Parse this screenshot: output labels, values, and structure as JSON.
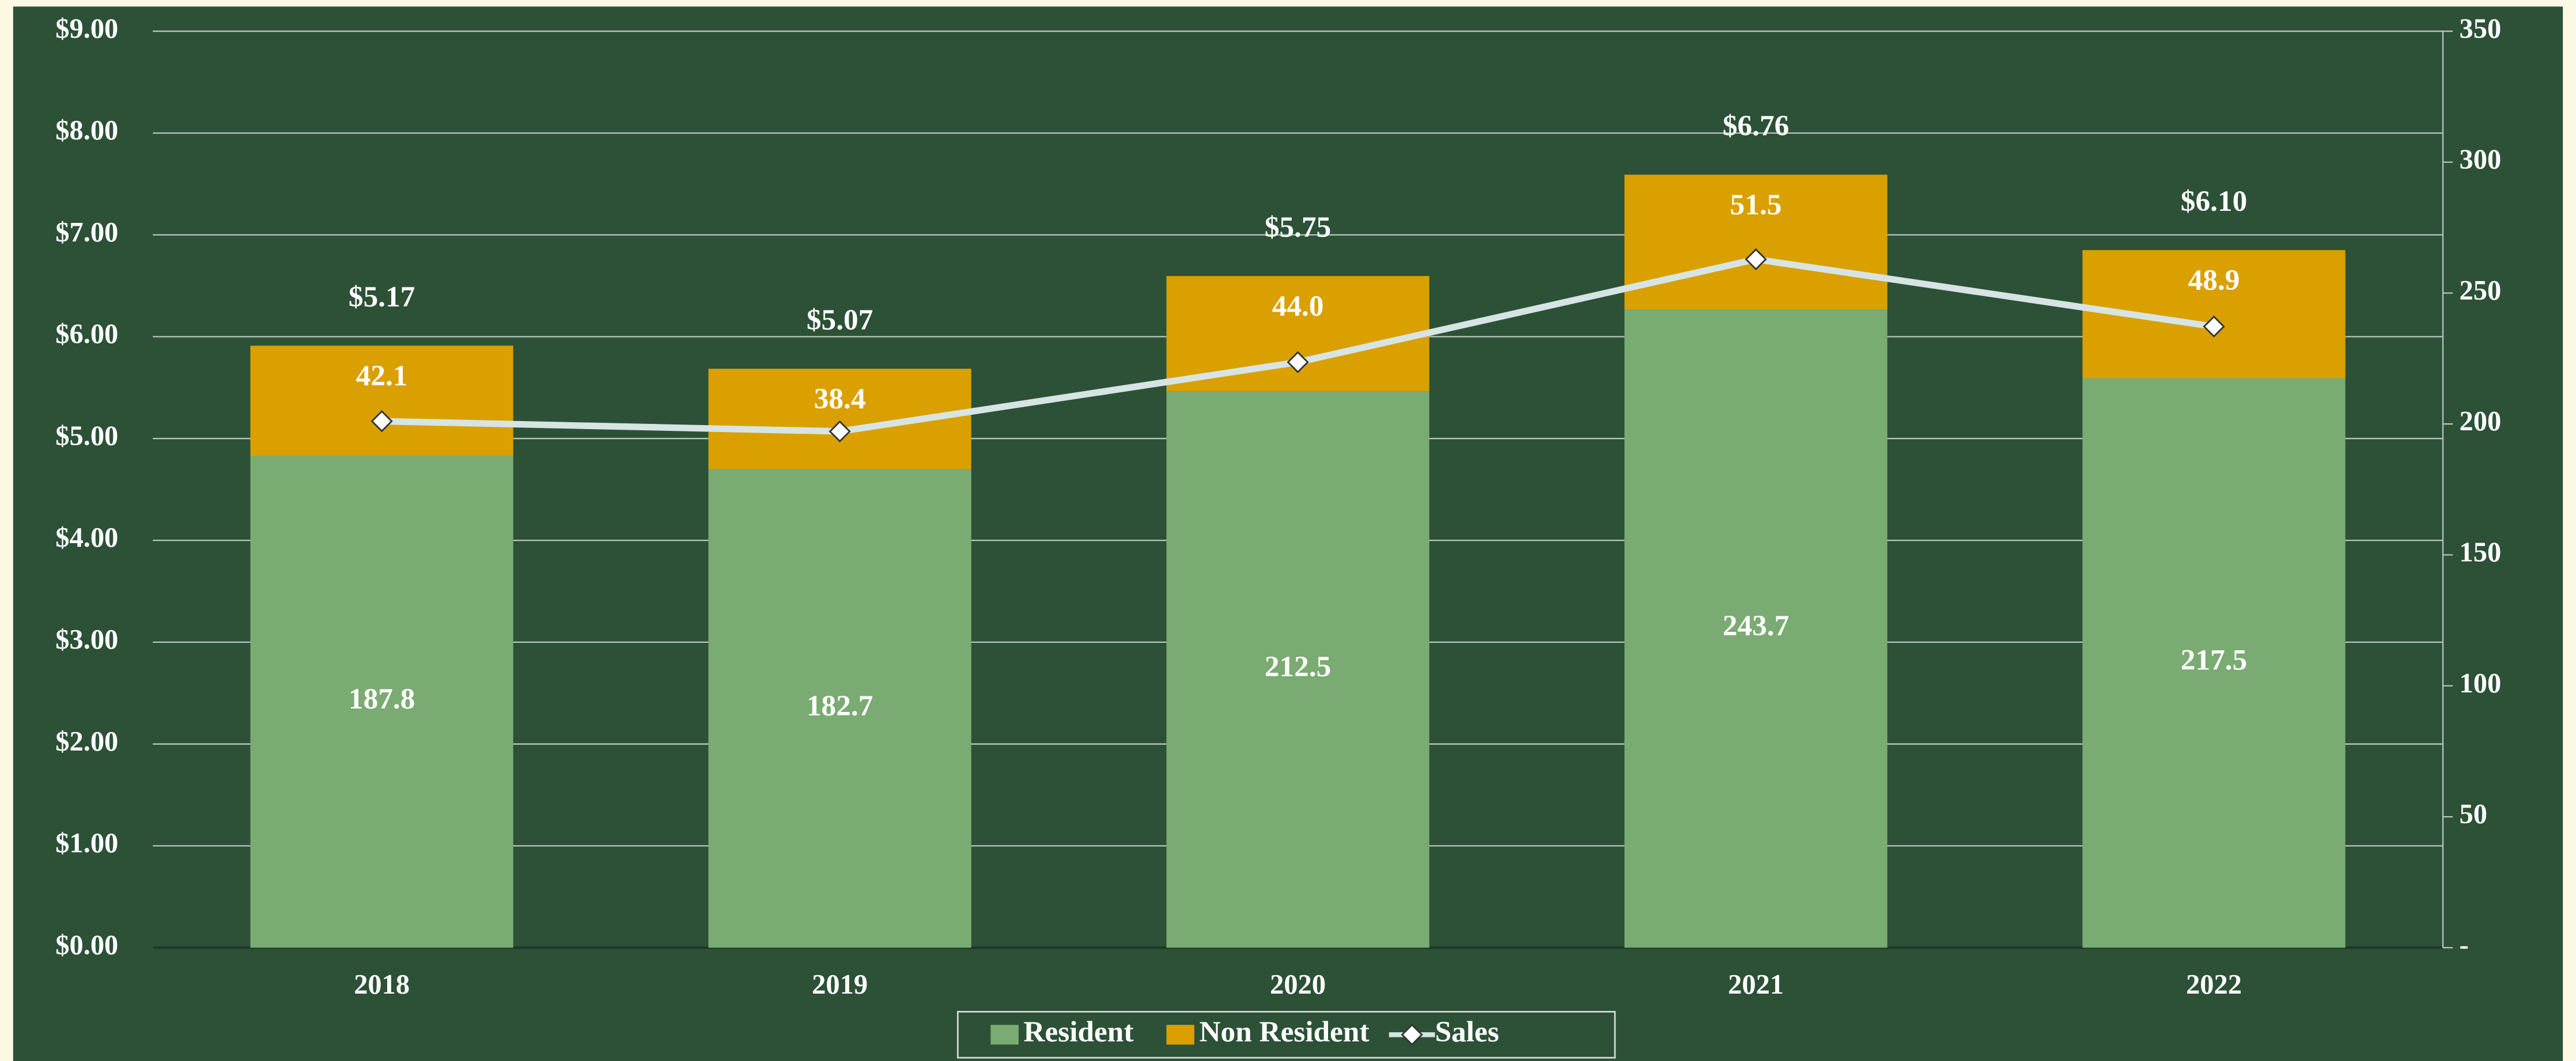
{
  "chart_data": {
    "type": "bar",
    "categories": [
      "2018",
      "2019",
      "2020",
      "2021",
      "2022"
    ],
    "series": [
      {
        "name": "Resident",
        "color": "#7aab72",
        "axis": "y2",
        "stack": true,
        "values": [
          187.8,
          182.7,
          212.5,
          243.7,
          217.5
        ]
      },
      {
        "name": "Non Resident",
        "color": "#d9a000",
        "axis": "y2",
        "stack": true,
        "values": [
          42.1,
          38.4,
          44.0,
          51.5,
          48.9
        ],
        "value_labels": [
          "42.1",
          "38.4",
          "44.0",
          "51.5",
          "48.9"
        ]
      },
      {
        "name": "Sales",
        "color": "#d6e4e4",
        "type": "line",
        "axis": "y",
        "values": [
          5.17,
          5.07,
          5.75,
          6.76,
          6.1
        ],
        "value_labels": [
          "$5.17",
          "$5.07",
          "$5.75",
          "$6.76",
          "$6.10"
        ]
      }
    ],
    "ylim": [
      0,
      9
    ],
    "yticks": [
      {
        "value": 0,
        "label": "$0.00"
      },
      {
        "value": 1,
        "label": "$1.00"
      },
      {
        "value": 2,
        "label": "$2.00"
      },
      {
        "value": 3,
        "label": "$3.00"
      },
      {
        "value": 4,
        "label": "$4.00"
      },
      {
        "value": 5,
        "label": "$5.00"
      },
      {
        "value": 6,
        "label": "$6.00"
      },
      {
        "value": 7,
        "label": "$7.00"
      },
      {
        "value": 8,
        "label": "$8.00"
      },
      {
        "value": 9,
        "label": "$9.00"
      }
    ],
    "y2lim": [
      0,
      350
    ],
    "y2ticks": [
      {
        "value": 0,
        "label": "-"
      },
      50,
      100,
      150,
      200,
      250,
      300,
      350
    ],
    "grid": true,
    "legend": "bottom"
  }
}
